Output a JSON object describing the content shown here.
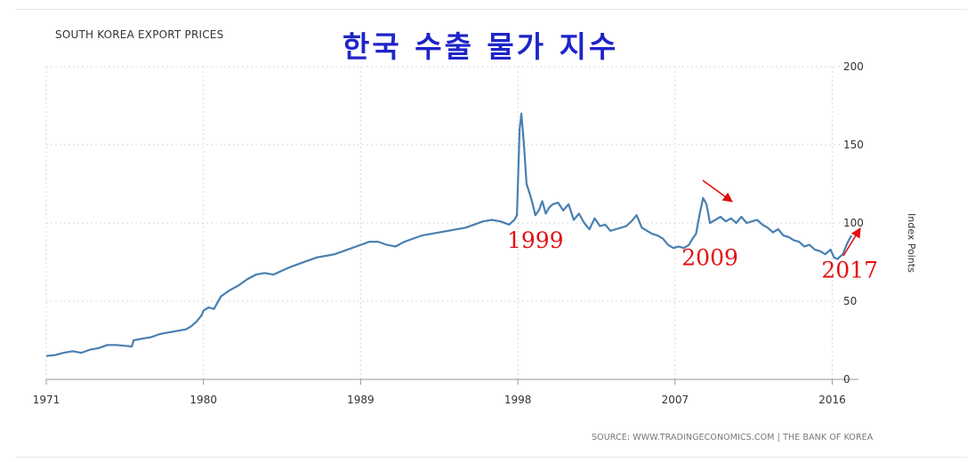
{
  "chart_data": {
    "type": "line",
    "title": "SOUTH KOREA EXPORT PRICES",
    "subtitle": "한국 수출 물가 지수",
    "ylabel": "Index Points",
    "source": "SOURCE: WWW.TRADINGECONOMICS.COM | THE BANK OF KOREA",
    "xlim": [
      1971,
      2017.5
    ],
    "ylim": [
      0,
      200
    ],
    "x_ticks": [
      "1971",
      "1980",
      "1989",
      "1998",
      "2007",
      "2016"
    ],
    "y_ticks": [
      "0",
      "50",
      "100",
      "150",
      "200"
    ],
    "grid": true,
    "line_color": "#4a7fb0",
    "annotation_color": "#e31010",
    "annotations": [
      {
        "label": "1999",
        "x": 1999.0,
        "y": 84
      },
      {
        "label": "2009",
        "x": 2009.0,
        "y": 73
      },
      {
        "label": "2017",
        "x": 2017.0,
        "y": 65
      }
    ],
    "series": [
      {
        "x": [
          1971.0,
          1971.5,
          1972.0,
          1972.5,
          1973.0,
          1973.5,
          1974.0,
          1974.5,
          1975.0,
          1975.5,
          1975.9,
          1976.0,
          1976.5,
          1977.0,
          1977.5,
          1978.0,
          1978.5,
          1979.0,
          1979.3,
          1979.6,
          1979.9,
          1980.0,
          1980.3,
          1980.6,
          1981.0,
          1981.5,
          1982.0,
          1982.5,
          1983.0,
          1983.5,
          1984.0,
          1985.0,
          1986.0,
          1986.5,
          1987.0,
          1987.5,
          1988.0,
          1988.5,
          1989.0,
          1989.5,
          1990.0,
          1990.5,
          1991.0,
          1991.5,
          1992.0,
          1992.5,
          1993.0,
          1993.5,
          1994.0,
          1995.0,
          1995.5,
          1996.0,
          1996.5,
          1997.0,
          1997.5,
          1997.8,
          1997.95,
          1998.1,
          1998.2,
          1998.35,
          1998.5,
          1998.7,
          1998.85,
          1999.0,
          1999.2,
          1999.4,
          1999.6,
          1999.8,
          2000.0,
          2000.3,
          2000.6,
          2000.9,
          2001.2,
          2001.5,
          2001.8,
          2002.1,
          2002.4,
          2002.7,
          2003.0,
          2003.3,
          2003.6,
          2003.9,
          2004.2,
          2004.5,
          2004.8,
          2005.1,
          2005.4,
          2005.7,
          2006.0,
          2006.3,
          2006.6,
          2006.9,
          2007.2,
          2007.5,
          2007.8,
          2008.0,
          2008.2,
          2008.4,
          2008.6,
          2008.8,
          2009.0,
          2009.3,
          2009.6,
          2009.9,
          2010.2,
          2010.5,
          2010.8,
          2011.1,
          2011.4,
          2011.7,
          2012.0,
          2012.3,
          2012.6,
          2012.9,
          2013.2,
          2013.5,
          2013.8,
          2014.1,
          2014.4,
          2014.7,
          2015.0,
          2015.3,
          2015.6,
          2015.9,
          2016.1,
          2016.3,
          2016.6,
          2016.9,
          2017.1
        ],
        "values": [
          15,
          15.5,
          17,
          18,
          17,
          19,
          20,
          22,
          22,
          21.5,
          21,
          25,
          26,
          27,
          29,
          30,
          31,
          32,
          34,
          37,
          41,
          44,
          46,
          45,
          53,
          57,
          60,
          64,
          67,
          68,
          67,
          72,
          76,
          78,
          79,
          80,
          82,
          84,
          86,
          88,
          88,
          86,
          85,
          88,
          90,
          92,
          93,
          94,
          95,
          97,
          99,
          101,
          102,
          101,
          99,
          102,
          105,
          160,
          170,
          150,
          125,
          118,
          112,
          105,
          108,
          114,
          106,
          110,
          112,
          113,
          108,
          112,
          102,
          106,
          100,
          96,
          103,
          98,
          99,
          95,
          96,
          97,
          98,
          101,
          105,
          97,
          95,
          93,
          92,
          90,
          86,
          84,
          85,
          84,
          86,
          90,
          93,
          105,
          116,
          112,
          100,
          102,
          104,
          101,
          103,
          100,
          104,
          100,
          101,
          102,
          99,
          97,
          94,
          96,
          92,
          91,
          89,
          88,
          85,
          86,
          83,
          82,
          80,
          83,
          78,
          77,
          80,
          88,
          92
        ]
      }
    ]
  }
}
